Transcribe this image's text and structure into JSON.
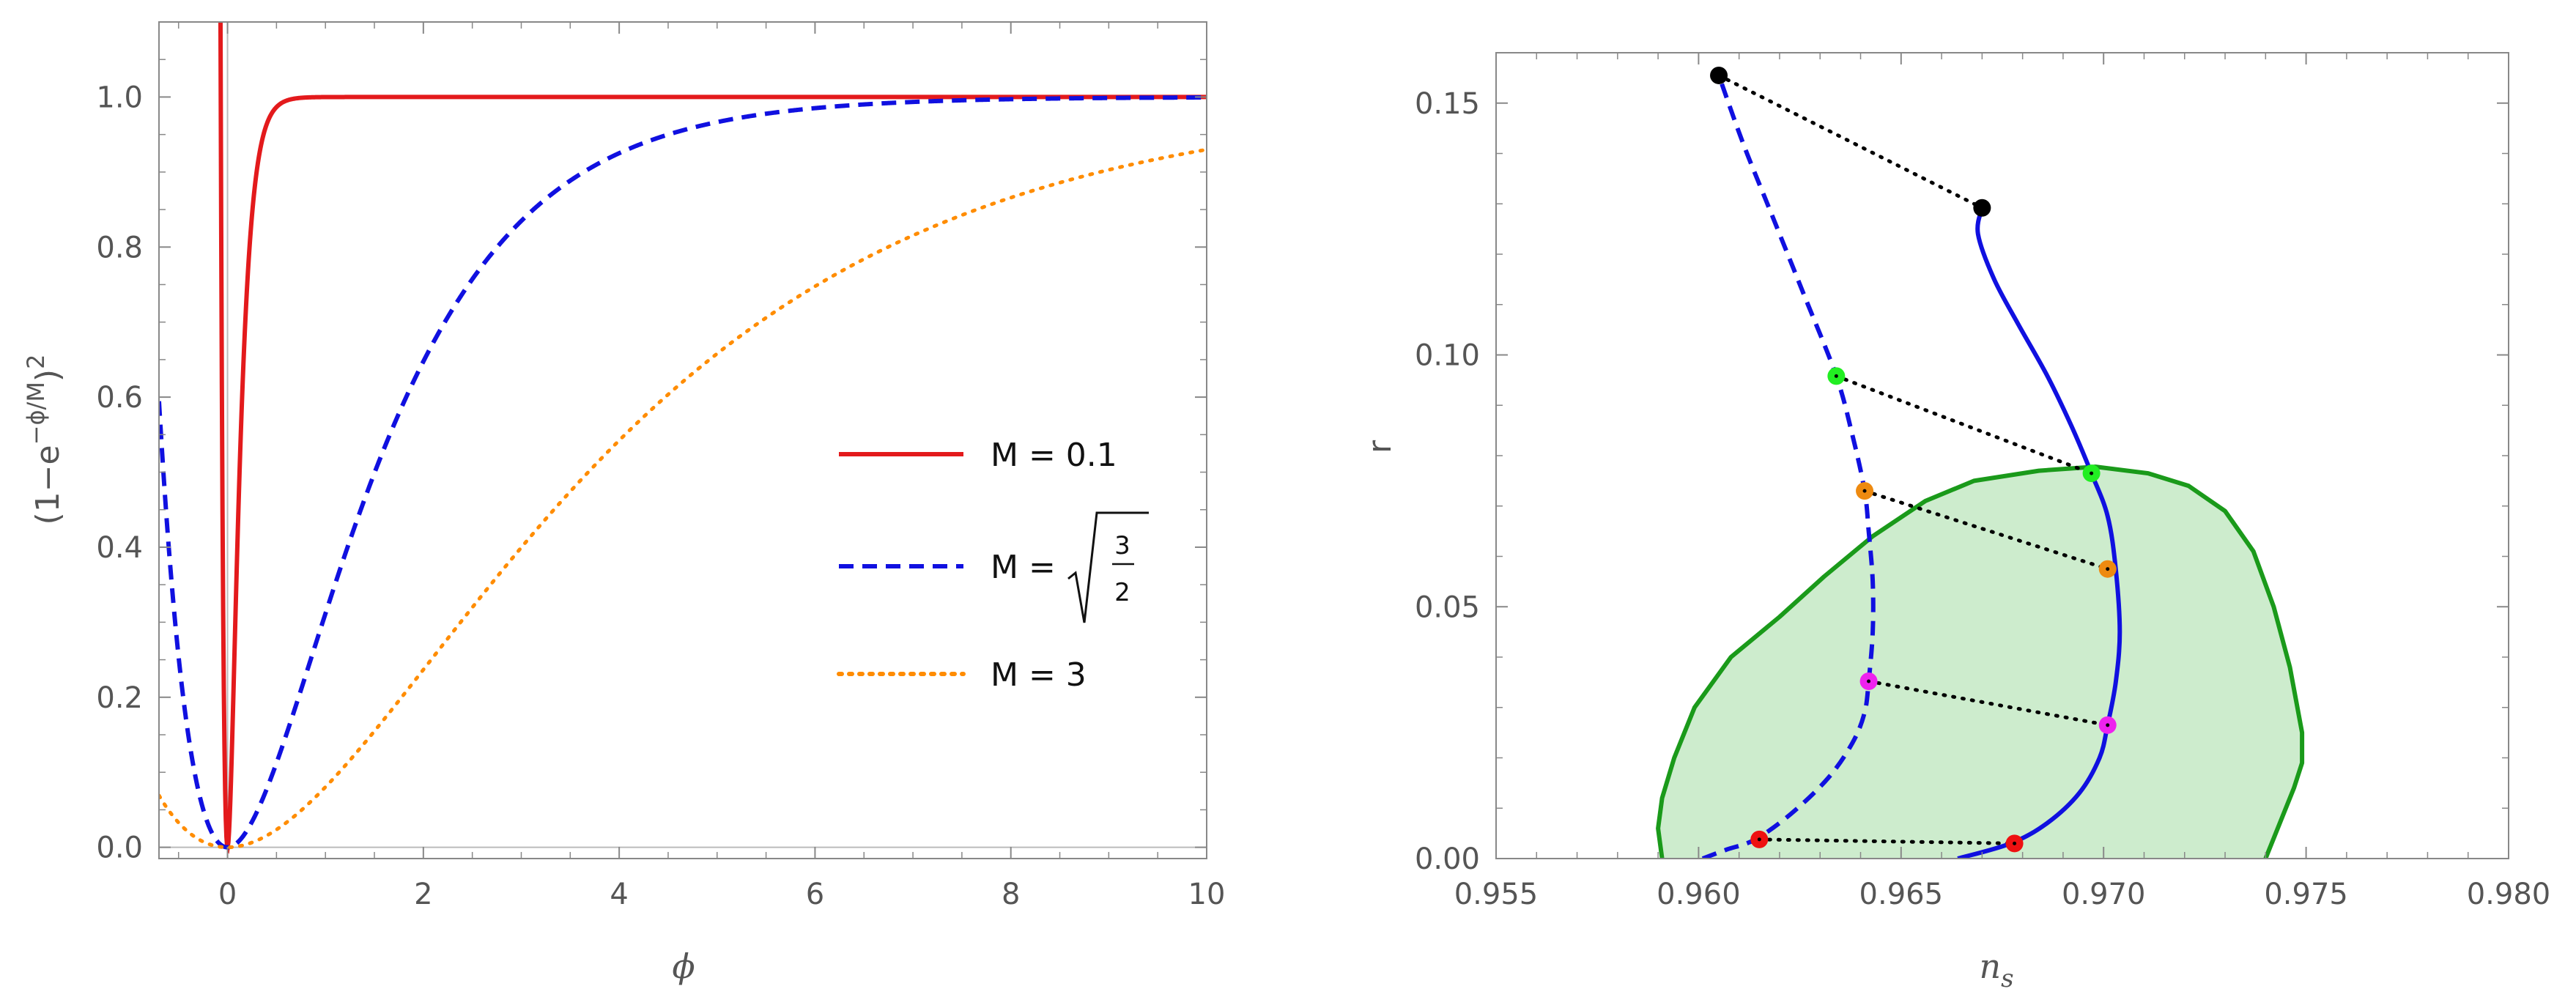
{
  "colors": {
    "red": "#e31a1c",
    "blue": "#1010e0",
    "orange": "#ff8c00",
    "green": "#1a9a1a",
    "green_fill": "#cdeccd",
    "black": "#000000",
    "lime": "#22ee22",
    "darkorange": "#ee8a10",
    "magenta": "#ee22ee",
    "dotred": "#ee1111",
    "axis": "#888888",
    "text": "#555555"
  },
  "chart_data": [
    {
      "type": "line",
      "xlabel": "ϕ",
      "ylabel_parts": {
        "base": "(1−e",
        "exponent": "−ϕ/M",
        "close": ")",
        "power": "2"
      },
      "xlim": [
        -0.7,
        10
      ],
      "ylim": [
        -0.015,
        1.1
      ],
      "xticks": [
        "0",
        "2",
        "4",
        "6",
        "8",
        "10"
      ],
      "xtick_values": [
        0,
        2,
        4,
        6,
        8,
        10
      ],
      "yticks": [
        "0.0",
        "0.2",
        "0.4",
        "0.6",
        "0.8",
        "1.0"
      ],
      "ytick_values": [
        0,
        0.2,
        0.4,
        0.6,
        0.8,
        1.0
      ],
      "series": [
        {
          "name": "M = 0.1",
          "M": 0.1,
          "style": "solid",
          "color": "#e31a1c"
        },
        {
          "name": "M = √(3/2)",
          "M": 1.2247,
          "style": "dashed",
          "color": "#1010e0"
        },
        {
          "name": "M = 3",
          "M": 3,
          "style": "dotted",
          "color": "#ff8c00"
        }
      ],
      "function": "(1 - exp(-x/M))^2",
      "legend": {
        "label_1": "M = 0.1",
        "label_2_prefix": "M =",
        "label_2_num": "3",
        "label_2_den": "2",
        "label_3": "M = 3"
      }
    },
    {
      "type": "scatter",
      "xlabel_base": "n",
      "xlabel_sub": "s",
      "ylabel": "r",
      "xlim": [
        0.955,
        0.98
      ],
      "ylim": [
        0,
        0.16
      ],
      "xticks": [
        "0.955",
        "0.960",
        "0.965",
        "0.970",
        "0.975",
        "0.980"
      ],
      "xtick_values": [
        0.955,
        0.96,
        0.965,
        0.97,
        0.975,
        0.98
      ],
      "yticks": [
        "0.00",
        "0.05",
        "0.10",
        "0.15"
      ],
      "ytick_values": [
        0,
        0.05,
        0.1,
        0.15
      ],
      "region": {
        "name": "confidence-region",
        "points": [
          [
            0.9591,
            0
          ],
          [
            0.959,
            0.006
          ],
          [
            0.9591,
            0.012
          ],
          [
            0.9594,
            0.02
          ],
          [
            0.9599,
            0.03
          ],
          [
            0.9608,
            0.04
          ],
          [
            0.962,
            0.048
          ],
          [
            0.9631,
            0.056
          ],
          [
            0.9643,
            0.064
          ],
          [
            0.9656,
            0.071
          ],
          [
            0.9668,
            0.075
          ],
          [
            0.9684,
            0.077
          ],
          [
            0.9698,
            0.0778
          ],
          [
            0.9711,
            0.0765
          ],
          [
            0.9721,
            0.074
          ],
          [
            0.973,
            0.069
          ],
          [
            0.9737,
            0.061
          ],
          [
            0.9742,
            0.05
          ],
          [
            0.9746,
            0.038
          ],
          [
            0.9749,
            0.025
          ],
          [
            0.9749,
            0.019
          ],
          [
            0.9747,
            0.014
          ],
          [
            0.9744,
            0.008
          ],
          [
            0.9741,
            0.002
          ],
          [
            0.974,
            0
          ]
        ]
      },
      "series": [
        {
          "name": "dashed-curve",
          "style": "dashed",
          "color": "#1010e0",
          "points": [
            [
              0.9601,
              0
            ],
            [
              0.9607,
              0.0018
            ],
            [
              0.9614,
              0.0038
            ],
            [
              0.9623,
              0.009
            ],
            [
              0.9632,
              0.016
            ],
            [
              0.9638,
              0.023
            ],
            [
              0.9641,
              0.029
            ],
            [
              0.9642,
              0.0352
            ],
            [
              0.9643,
              0.045
            ],
            [
              0.9643,
              0.055
            ],
            [
              0.9642,
              0.065
            ],
            [
              0.9641,
              0.073
            ],
            [
              0.9638,
              0.084
            ],
            [
              0.9634,
              0.0958
            ],
            [
              0.9626,
              0.112
            ],
            [
              0.9618,
              0.128
            ],
            [
              0.9611,
              0.142
            ],
            [
              0.9605,
              0.1555
            ]
          ]
        },
        {
          "name": "solid-curve",
          "style": "solid",
          "color": "#1010e0",
          "points": [
            [
              0.9664,
              0
            ],
            [
              0.9677,
              0.003
            ],
            [
              0.9686,
              0.007
            ],
            [
              0.9694,
              0.013
            ],
            [
              0.9699,
              0.02
            ],
            [
              0.9701,
              0.0265
            ],
            [
              0.9703,
              0.035
            ],
            [
              0.9704,
              0.045
            ],
            [
              0.9703,
              0.0575
            ],
            [
              0.9701,
              0.068
            ],
            [
              0.9697,
              0.0765
            ],
            [
              0.9692,
              0.086
            ],
            [
              0.9686,
              0.096
            ],
            [
              0.9679,
              0.106
            ],
            [
              0.9673,
              0.115
            ],
            [
              0.9669,
              0.124
            ],
            [
              0.967,
              0.1292
            ]
          ]
        }
      ],
      "pairs": [
        {
          "color": "#000000",
          "a": [
            0.9605,
            0.1555
          ],
          "b": [
            0.967,
            0.1292
          ]
        },
        {
          "color": "#22ee22",
          "a": [
            0.9634,
            0.0958
          ],
          "b": [
            0.9697,
            0.0765
          ]
        },
        {
          "color": "#ee8a10",
          "a": [
            0.9641,
            0.073
          ],
          "b": [
            0.9701,
            0.0575
          ]
        },
        {
          "color": "#ee22ee",
          "a": [
            0.9642,
            0.0352
          ],
          "b": [
            0.9701,
            0.0265
          ]
        },
        {
          "color": "#ee1111",
          "a": [
            0.9615,
            0.0038
          ],
          "b": [
            0.9678,
            0.003
          ]
        }
      ]
    }
  ]
}
